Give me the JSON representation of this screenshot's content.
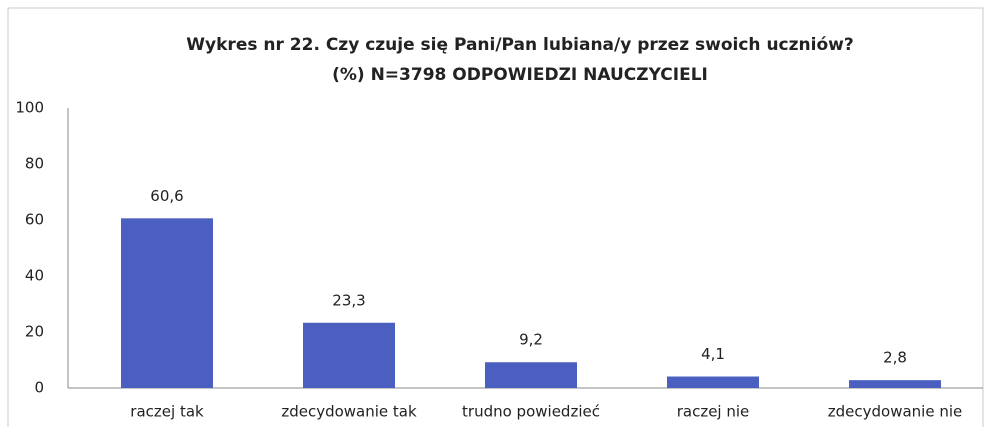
{
  "chart_data": {
    "type": "bar",
    "title": [
      "Wykres nr 22. Czy czuje się Pani/Pan lubiana/y przez swoich uczniów?",
      "(%) N=3798 ODPOWIEDZI NAUCZYCIELI"
    ],
    "categories": [
      "raczej tak",
      "zdecydowanie tak",
      "trudno powiedzieć",
      "raczej nie",
      "zdecydowanie nie"
    ],
    "values": [
      60.6,
      23.3,
      9.2,
      4.1,
      2.8
    ],
    "value_labels": [
      "60,6",
      "23,3",
      "9,2",
      "4,1",
      "2,8"
    ],
    "color": "#4a5fbf",
    "ylim": [
      0,
      100
    ],
    "yticks": [
      0,
      20,
      40,
      60,
      80,
      100
    ],
    "grid": false
  }
}
